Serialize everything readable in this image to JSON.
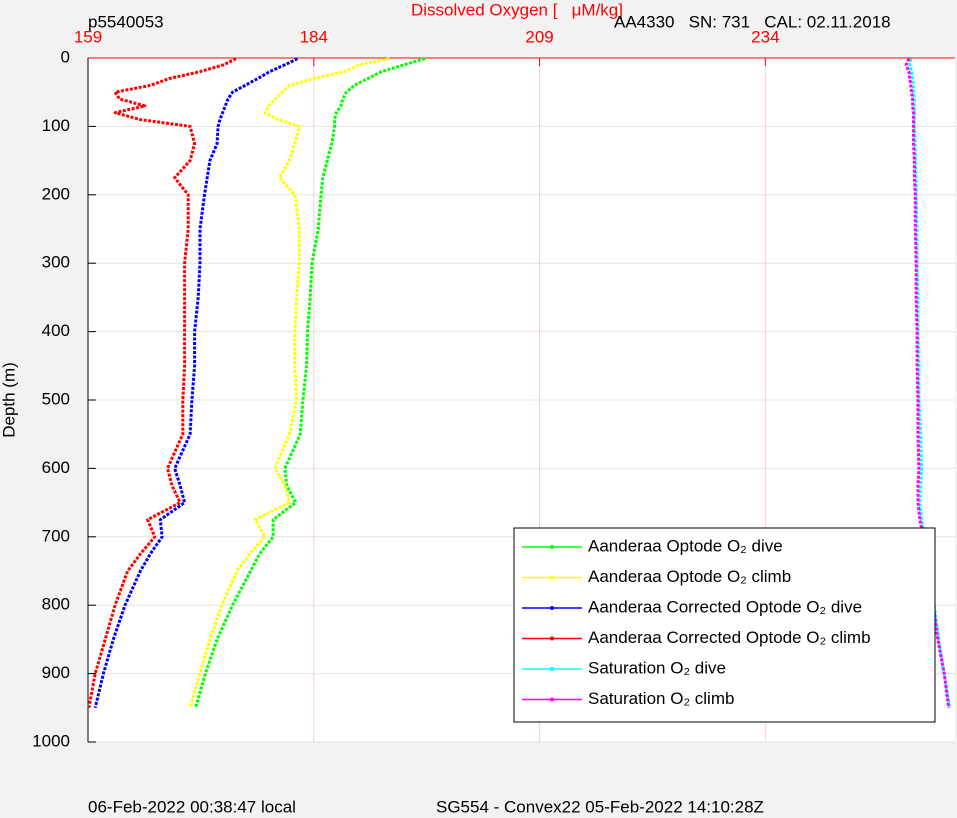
{
  "chart_data": {
    "type": "line",
    "title": "Dissolved Oxygen [   μM/kg]",
    "top_left_label": "p5540053",
    "top_right_label": "AA4330   SN: 731   CAL: 02.11.2018",
    "footer_left": "06-Feb-2022 00:38:47 local",
    "footer_right": "SG554 - Convex22 05-Feb-2022 14:10:28Z",
    "y_label": "Depth (m)",
    "xlim": [
      159,
      255
    ],
    "xticks": [
      159,
      184,
      209,
      234
    ],
    "ylim": [
      0,
      1000
    ],
    "yticks": [
      0,
      100,
      200,
      300,
      400,
      500,
      600,
      700,
      800,
      900,
      1000
    ],
    "y_reversed": true,
    "grid": true,
    "legend": "lower right",
    "y": [
      1,
      10,
      20,
      30,
      40,
      50,
      60,
      70,
      80,
      90,
      100,
      125,
      150,
      175,
      200,
      250,
      300,
      350,
      400,
      450,
      500,
      550,
      600,
      625,
      650,
      675,
      700,
      725,
      750,
      800,
      850,
      900,
      950
    ],
    "series": [
      {
        "name": "Aanderaa Optode O₂ dive",
        "color": "#00ff00",
        "values": [
          196.3,
          194,
          191.5,
          190,
          188.5,
          187.6,
          187.2,
          187,
          186.5,
          186.3,
          186.3,
          186,
          185.5,
          185,
          184.8,
          184.5,
          183.8,
          183.6,
          183.3,
          183.2,
          182.8,
          182.5,
          180.8,
          181,
          182,
          179.5,
          179.5,
          178,
          177,
          175,
          173.3,
          172,
          170.9
        ]
      },
      {
        "name": "Aanderaa Optode O₂ climb",
        "color": "#ffff00",
        "values": [
          192.4,
          189,
          187.4,
          184,
          181.3,
          180.5,
          179.7,
          179,
          178.6,
          180,
          182.4,
          181.9,
          181.3,
          180.2,
          181.9,
          182.4,
          182.4,
          182.1,
          181.9,
          181.9,
          182.1,
          181.3,
          179.7,
          180.8,
          181.3,
          177.5,
          178.6,
          176.9,
          175.5,
          173.8,
          172.5,
          171.4,
          170.3
        ]
      },
      {
        "name": "Aanderaa Corrected Optode O₂ dive",
        "color": "#0000ff",
        "values": [
          182.2,
          180.8,
          179.1,
          177.8,
          176.4,
          175,
          174.5,
          174.2,
          173.9,
          173.6,
          173.4,
          173.3,
          172.5,
          172.2,
          171.9,
          171.4,
          171.4,
          171.2,
          170.8,
          170.8,
          170.5,
          170.3,
          168.6,
          169.2,
          169.7,
          167,
          167.2,
          165.9,
          164.8,
          163.1,
          161.8,
          160.7,
          159.8
        ]
      },
      {
        "name": "Aanderaa Corrected Optode O₂ climb",
        "color": "#ff0000",
        "values": [
          175.4,
          174,
          171.4,
          168,
          165.9,
          162,
          162.5,
          165.3,
          162,
          164.8,
          170.3,
          170.8,
          170.3,
          168.6,
          170.1,
          170.1,
          169.7,
          169.7,
          169.7,
          169.7,
          169.5,
          169.5,
          167.8,
          168.3,
          169.2,
          165.6,
          166.4,
          164.8,
          163.4,
          162,
          160.9,
          159.8,
          159.1
        ]
      },
      {
        "name": "Saturation O₂ dive",
        "color": "#00ffff",
        "values": [
          250.1,
          250,
          250.2,
          250.3,
          250.4,
          250.4,
          250.5,
          250.5,
          250.5,
          250.5,
          250.5,
          250.6,
          250.6,
          250.7,
          250.7,
          250.8,
          250.8,
          250.9,
          250.9,
          251,
          251,
          251.2,
          251.3,
          251.2,
          251.1,
          251.3,
          251.7,
          252,
          252.2,
          252.7,
          253.2,
          253.8,
          254.4
        ]
      },
      {
        "name": "Saturation O₂ climb",
        "color": "#ff00ff",
        "values": [
          249.9,
          249.6,
          249.9,
          250,
          250.1,
          250.2,
          250.3,
          250.3,
          250.4,
          250.4,
          250.4,
          250.4,
          250.5,
          250.5,
          250.6,
          250.6,
          250.7,
          250.7,
          250.8,
          250.8,
          250.9,
          250.9,
          251,
          250.9,
          250.9,
          251.1,
          251.5,
          251.9,
          252.1,
          252.6,
          253.1,
          253.8,
          254.3
        ]
      }
    ]
  }
}
